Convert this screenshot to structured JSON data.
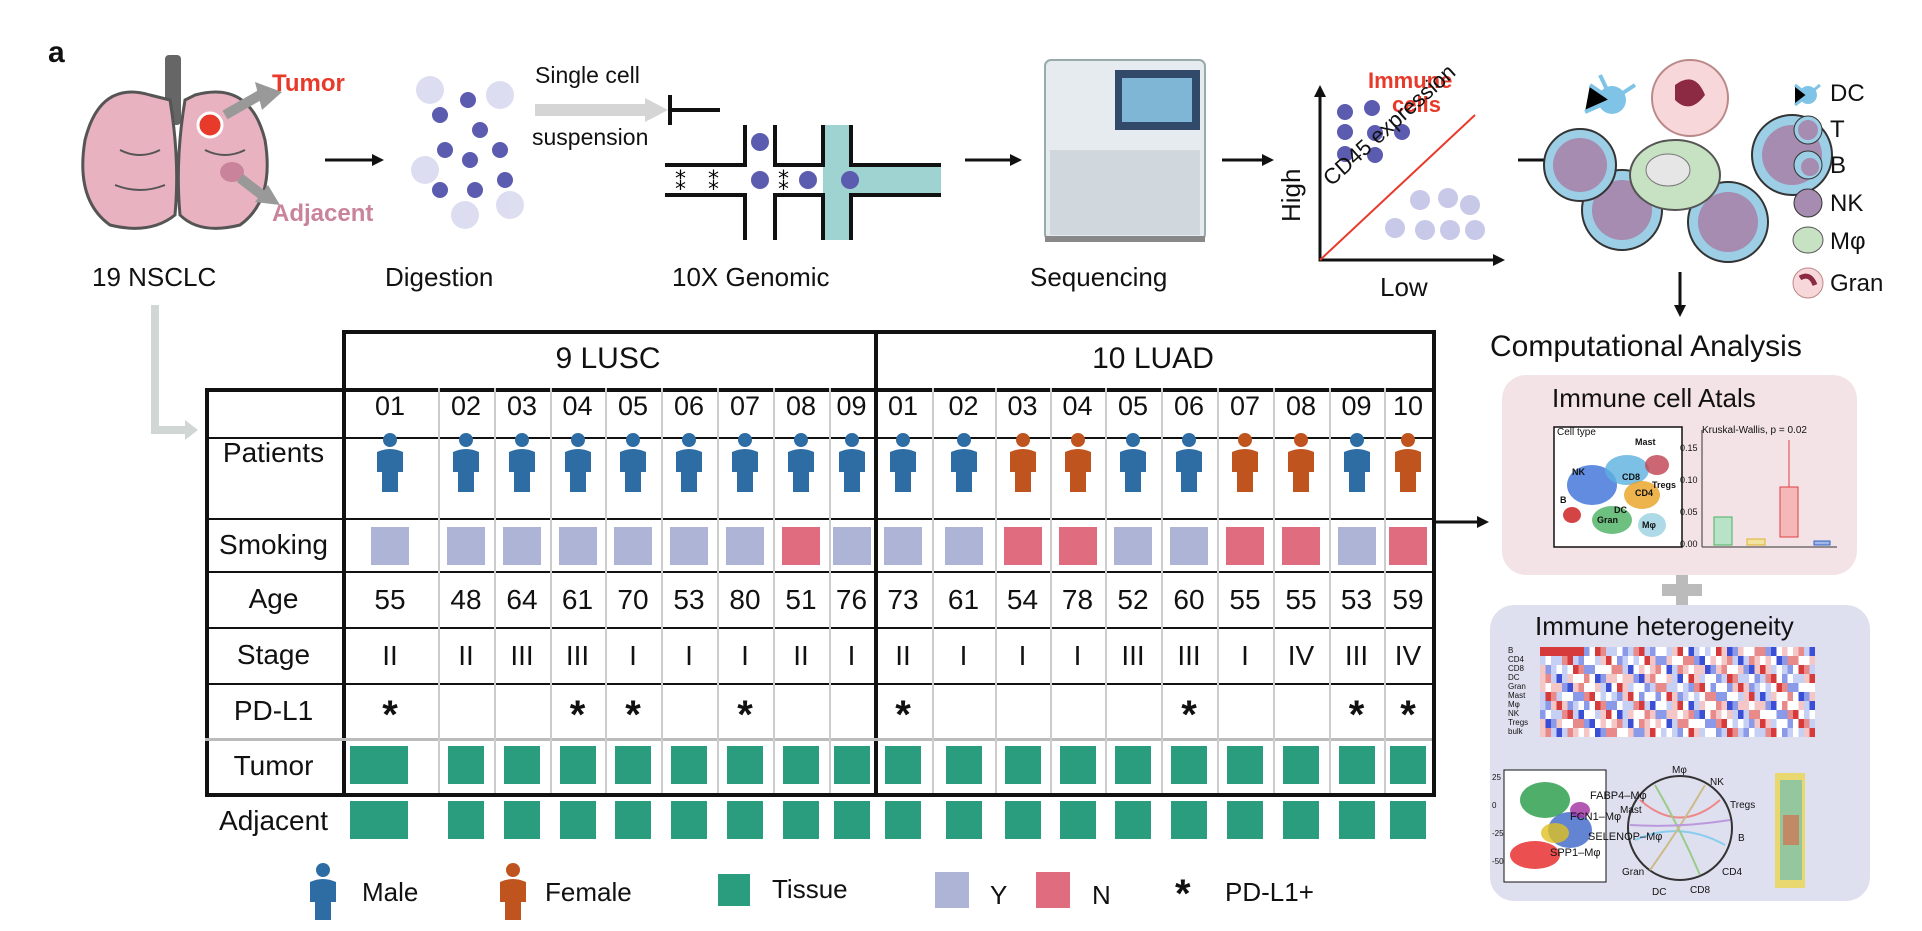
{
  "panel_label": "a",
  "workflow": {
    "tumor_label": "Tumor",
    "adjacent_label": "Adjacent",
    "nsclc_label": "19 NSCLC",
    "digestion_label": "Digestion",
    "single_cell_line1": "Single cell",
    "single_cell_line2": "suspension",
    "genomic_label": "10X Genomic",
    "sequencing_label": "Sequencing",
    "immune_cells_line1": "Immune",
    "immune_cells_line2": "cells",
    "cd45_label": "CD45 expression",
    "high_label": "High",
    "low_label": "Low",
    "computational_label": "Computational Analysis"
  },
  "cell_legend": [
    "DC",
    "T",
    "B",
    "NK",
    "Mφ",
    "Gran"
  ],
  "table": {
    "group1_header": "9 LUSC",
    "group2_header": "10 LUAD",
    "row_labels": [
      "Patients",
      "Smoking",
      "Age",
      "Stage",
      "PD-L1",
      "Tumor",
      "Adjacent"
    ],
    "lusc": [
      {
        "id": "01",
        "sex": "M",
        "smoking": "Y",
        "age": "55",
        "stage": "II",
        "pdl1": true
      },
      {
        "id": "02",
        "sex": "M",
        "smoking": "Y",
        "age": "48",
        "stage": "II",
        "pdl1": false
      },
      {
        "id": "03",
        "sex": "M",
        "smoking": "Y",
        "age": "64",
        "stage": "III",
        "pdl1": false
      },
      {
        "id": "04",
        "sex": "M",
        "smoking": "Y",
        "age": "61",
        "stage": "III",
        "pdl1": true
      },
      {
        "id": "05",
        "sex": "M",
        "smoking": "Y",
        "age": "70",
        "stage": "I",
        "pdl1": true
      },
      {
        "id": "06",
        "sex": "M",
        "smoking": "Y",
        "age": "53",
        "stage": "I",
        "pdl1": false
      },
      {
        "id": "07",
        "sex": "M",
        "smoking": "Y",
        "age": "80",
        "stage": "I",
        "pdl1": true
      },
      {
        "id": "08",
        "sex": "M",
        "smoking": "N",
        "age": "51",
        "stage": "II",
        "pdl1": false
      },
      {
        "id": "09",
        "sex": "M",
        "smoking": "Y",
        "age": "76",
        "stage": "I",
        "pdl1": false
      }
    ],
    "luad": [
      {
        "id": "01",
        "sex": "M",
        "smoking": "Y",
        "age": "73",
        "stage": "II",
        "pdl1": true
      },
      {
        "id": "02",
        "sex": "M",
        "smoking": "Y",
        "age": "61",
        "stage": "I",
        "pdl1": false
      },
      {
        "id": "03",
        "sex": "F",
        "smoking": "N",
        "age": "54",
        "stage": "I",
        "pdl1": false
      },
      {
        "id": "04",
        "sex": "F",
        "smoking": "N",
        "age": "78",
        "stage": "I",
        "pdl1": false
      },
      {
        "id": "05",
        "sex": "M",
        "smoking": "Y",
        "age": "52",
        "stage": "III",
        "pdl1": false
      },
      {
        "id": "06",
        "sex": "M",
        "smoking": "Y",
        "age": "60",
        "stage": "III",
        "pdl1": true
      },
      {
        "id": "07",
        "sex": "F",
        "smoking": "N",
        "age": "55",
        "stage": "I",
        "pdl1": false
      },
      {
        "id": "08",
        "sex": "F",
        "smoking": "N",
        "age": "55",
        "stage": "IV",
        "pdl1": false
      },
      {
        "id": "09",
        "sex": "M",
        "smoking": "Y",
        "age": "53",
        "stage": "III",
        "pdl1": true
      },
      {
        "id": "10",
        "sex": "F",
        "smoking": "N",
        "age": "59",
        "stage": "IV",
        "pdl1": true
      }
    ]
  },
  "legend": {
    "male": "Male",
    "female": "Female",
    "tissue": "Tissue",
    "yes": "Y",
    "no": "N",
    "star": "*",
    "pdl1": "PD-L1+"
  },
  "colors": {
    "male": "#2e6da4",
    "female": "#c0541f",
    "tissue": "#2a9d7f",
    "smoke_y": "#aeb4d6",
    "smoke_n": "#e06c7f",
    "tumor_red": "#e83a2a",
    "adjacent_pink": "#c9849c",
    "panel1_bg": "#f3e3e6",
    "panel2_bg": "#dfe0ef"
  },
  "atlas_panel": {
    "title": "Immune cell Atals",
    "cell_type_label": "Cell type",
    "umap_labels": [
      "Mast",
      "NK",
      "CD8",
      "Tregs",
      "CD4",
      "B",
      "DC",
      "Gran",
      "Mφ"
    ],
    "stat_label": "Kruskal-Wallis, p = 0.02",
    "y_ticks": [
      "0.15",
      "0.10",
      "0.05",
      "0.00"
    ]
  },
  "heterogeneity_panel": {
    "title": "Immune heterogeneity",
    "heat_rows": [
      "B",
      "CD4",
      "CD8",
      "DC",
      "Gran",
      "Mast",
      "Mφ",
      "NK",
      "Tregs",
      "bulk"
    ],
    "tsne_labels": [
      "FABP4–Mφ",
      "FCN1–Mφ",
      "SELENOP–Mφ",
      "SPP1–Mφ"
    ],
    "chord_labels": [
      "Mφ",
      "NK",
      "Tregs",
      "B",
      "CD4",
      "CD8",
      "DC",
      "Gran",
      "Mast"
    ],
    "tsne_ticks": [
      "25",
      "0",
      "-25",
      "-50"
    ]
  }
}
